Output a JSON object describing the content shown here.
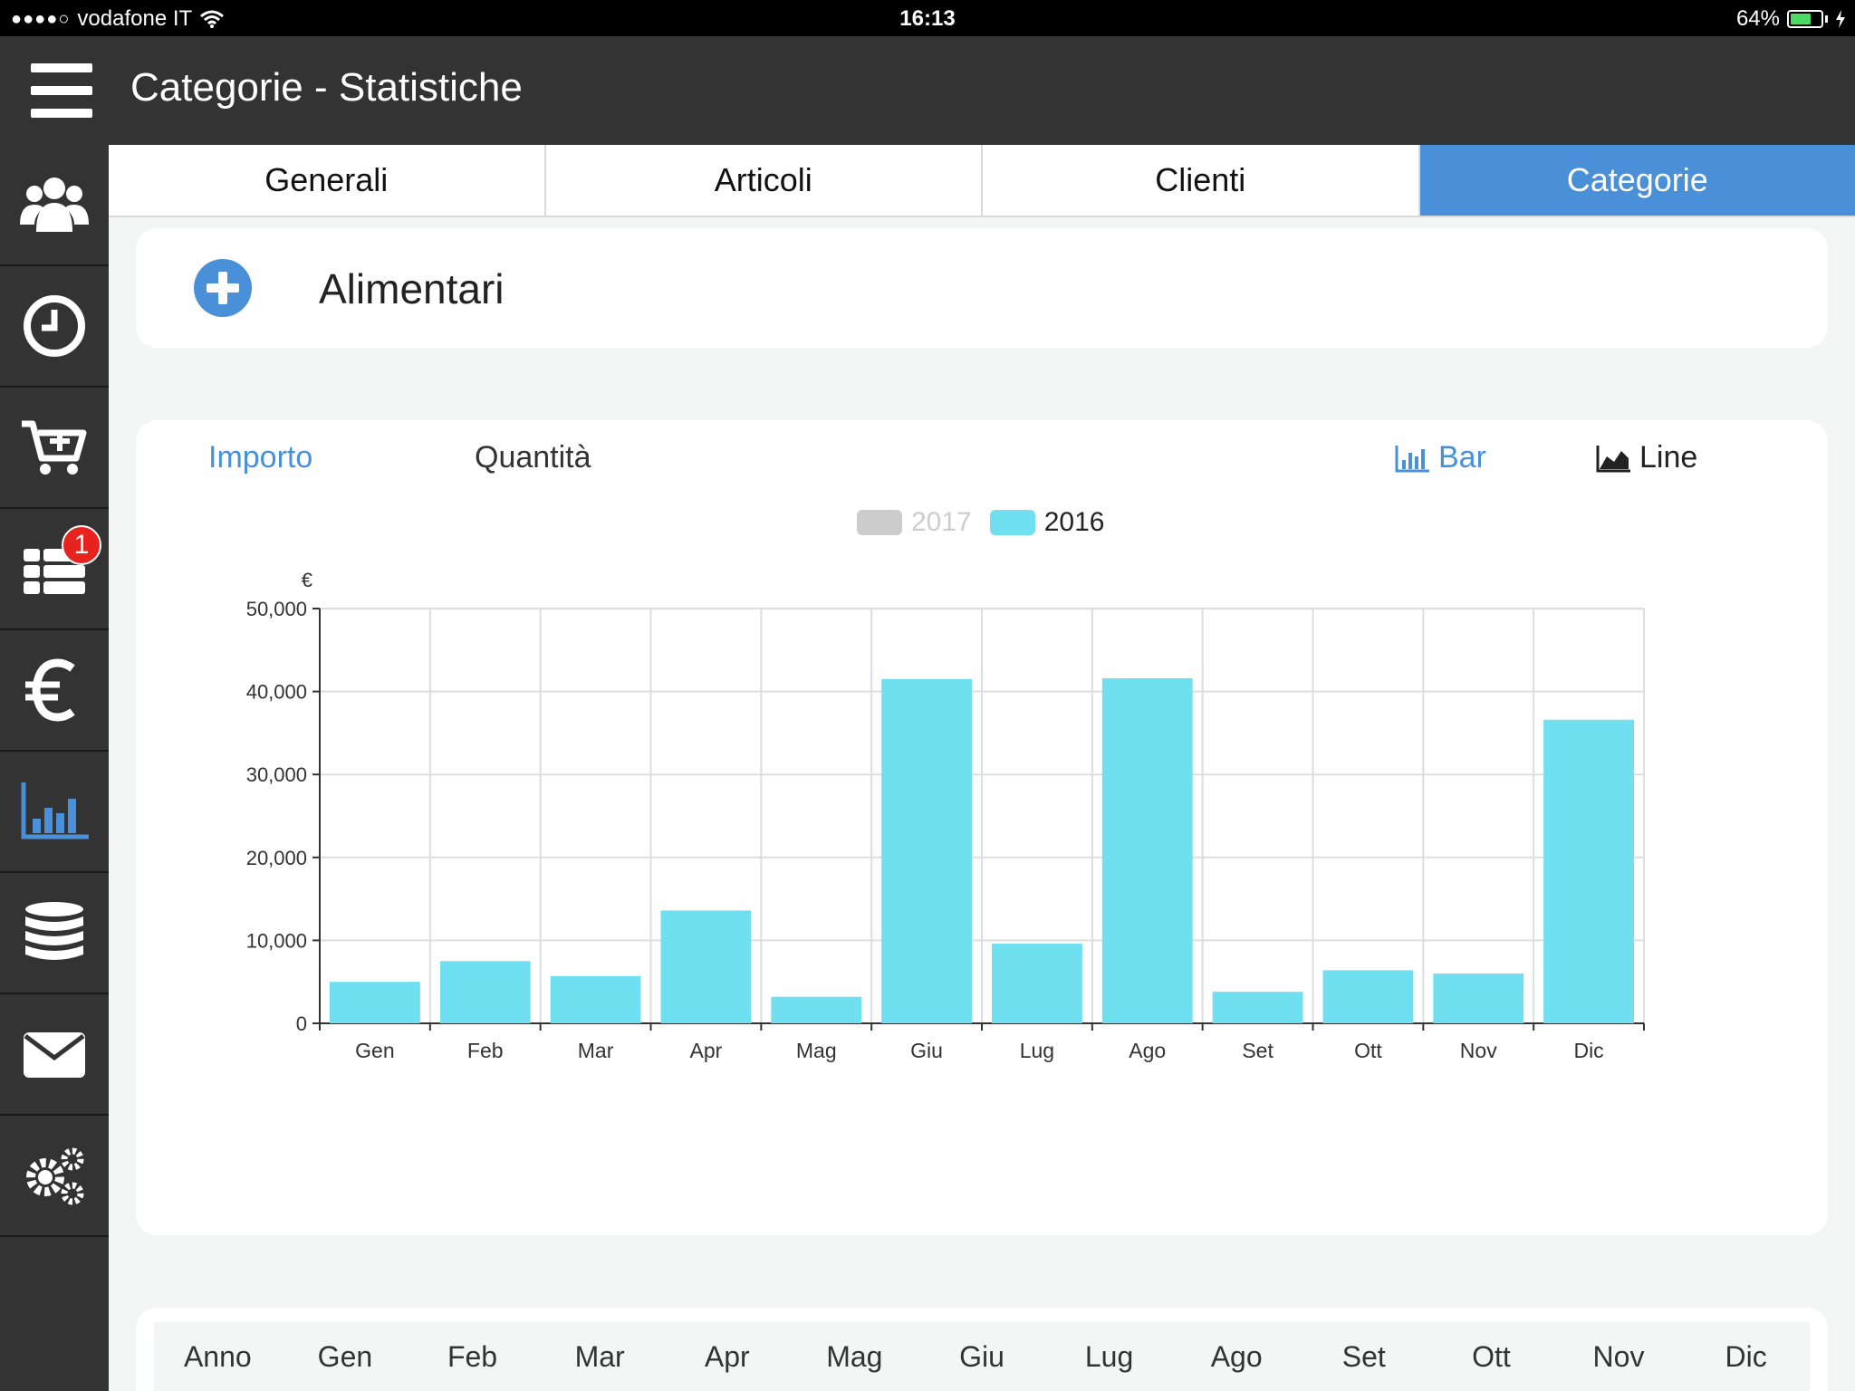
{
  "status_bar": {
    "signal": "●●●●○",
    "carrier": "vodafone IT",
    "time": "16:13",
    "battery_level": "64%"
  },
  "header": {
    "title": "Categorie - Statistiche"
  },
  "sidebar": {
    "items": [
      {
        "icon": "users-icon"
      },
      {
        "icon": "clock-icon"
      },
      {
        "icon": "cart-add-icon"
      },
      {
        "icon": "list-icon",
        "badge": "1"
      },
      {
        "icon": "euro-icon"
      },
      {
        "icon": "bar-chart-icon",
        "active": true
      },
      {
        "icon": "database-icon"
      },
      {
        "icon": "mail-icon"
      },
      {
        "icon": "settings-icon"
      }
    ]
  },
  "tabs": [
    {
      "label": "Generali"
    },
    {
      "label": "Articoli"
    },
    {
      "label": "Clienti"
    },
    {
      "label": "Categorie",
      "active": true
    }
  ],
  "category": {
    "name": "Alimentari"
  },
  "chart_controls": {
    "metric_amount": "Importo",
    "metric_quantity": "Quantità",
    "bar_label": "Bar",
    "line_label": "Line"
  },
  "legend": [
    {
      "label": "2017",
      "color": "#cccccc",
      "hidden": true
    },
    {
      "label": "2016",
      "color": "#70dff0"
    }
  ],
  "chart_data": {
    "type": "bar",
    "ylabel": "€",
    "ylim": [
      0,
      50000
    ],
    "yticks": [
      "0",
      "10,000",
      "20,000",
      "30,000",
      "40,000",
      "50,000"
    ],
    "categories": [
      "Gen",
      "Feb",
      "Mar",
      "Apr",
      "Mag",
      "Giu",
      "Lug",
      "Ago",
      "Set",
      "Ott",
      "Nov",
      "Dic"
    ],
    "series": [
      {
        "name": "2016",
        "color": "#70dff0",
        "values": [
          5000,
          7500,
          5700,
          13600,
          3200,
          41500,
          9600,
          41600,
          3800,
          6400,
          6000,
          36600
        ]
      }
    ],
    "grid": true
  },
  "table": {
    "headers": [
      "Anno",
      "Gen",
      "Feb",
      "Mar",
      "Apr",
      "Mag",
      "Giu",
      "Lug",
      "Ago",
      "Set",
      "Ott",
      "Nov",
      "Dic"
    ]
  }
}
